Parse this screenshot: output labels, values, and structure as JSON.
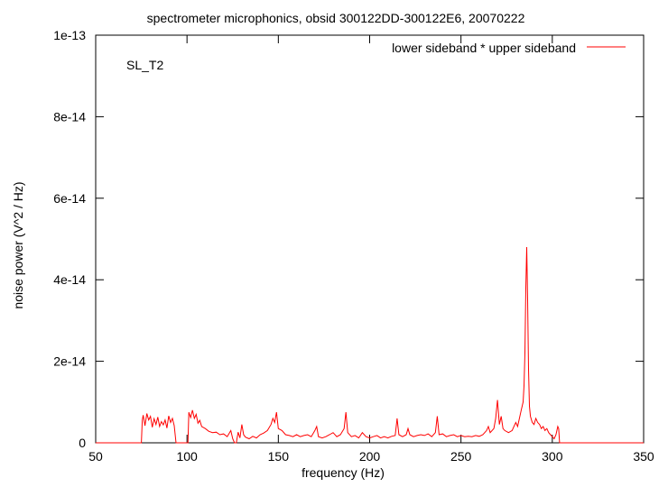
{
  "chart_data": {
    "type": "line",
    "title": "spectrometer microphonics, obsid 300122DD-300122E6, 20070222",
    "xlabel": "frequency (Hz)",
    "ylabel": "noise power (V^2 / Hz)",
    "annotation": "SL_T2",
    "xlim": [
      50,
      350
    ],
    "ylim": [
      0,
      1e-13
    ],
    "x_ticks": [
      50,
      100,
      150,
      200,
      250,
      300,
      350
    ],
    "x_tick_labels": [
      "50",
      "100",
      "150",
      "200",
      "250",
      "300",
      "350"
    ],
    "y_ticks": [
      0,
      2e-14,
      4e-14,
      6e-14,
      8e-14,
      1e-13
    ],
    "y_tick_labels": [
      "0",
      "2e-14",
      "4e-14",
      "6e-14",
      "8e-14",
      "1e-13"
    ],
    "grid": false,
    "legend_position": "top-right",
    "series_color": "#ff0000",
    "series": [
      {
        "name": "lower sideband * upper sideband",
        "x": [
          50,
          75,
          75.5,
          76,
          77,
          78,
          79,
          80,
          81,
          82,
          83,
          84,
          85,
          86,
          87,
          88,
          89,
          90,
          91,
          92,
          93,
          94,
          95,
          96,
          97,
          98,
          99,
          100,
          100.5,
          101,
          102,
          103,
          104,
          105,
          106,
          107,
          108,
          110,
          112,
          114,
          116,
          118,
          120,
          122,
          124,
          125,
          126,
          127,
          128,
          129,
          130,
          131,
          132,
          134,
          136,
          138,
          140,
          142,
          144,
          146,
          147,
          148,
          149,
          150,
          152,
          154,
          156,
          158,
          160,
          162,
          164,
          166,
          168,
          170,
          171,
          172,
          174,
          176,
          178,
          180,
          182,
          184,
          186,
          187,
          188,
          190,
          192,
          194,
          196,
          198,
          200,
          202,
          204,
          206,
          208,
          210,
          212,
          214,
          215,
          216,
          218,
          220,
          221,
          222,
          224,
          226,
          228,
          230,
          232,
          234,
          236,
          237,
          238,
          240,
          242,
          244,
          246,
          248,
          250,
          252,
          254,
          256,
          258,
          260,
          262,
          264,
          265,
          266,
          268,
          269,
          270,
          271,
          272,
          273,
          274,
          276,
          278,
          279,
          280,
          281,
          282,
          283,
          284,
          284.5,
          285,
          285.5,
          286,
          286.5,
          287,
          287.5,
          288,
          289,
          290,
          291,
          292,
          293,
          294,
          295,
          296,
          297,
          298,
          299,
          300,
          301,
          302,
          303,
          303.5,
          304,
          350
        ],
        "y": [
          0,
          0,
          5.5e-15,
          6.8e-15,
          4.2e-15,
          7.2e-15,
          5.6e-15,
          6.5e-15,
          3.8e-15,
          5.9e-15,
          4.5e-15,
          6.3e-15,
          4e-15,
          5.2e-15,
          4.4e-15,
          5.6e-15,
          3.6e-15,
          6.6e-15,
          5e-15,
          6e-15,
          4.2e-15,
          0,
          0,
          0,
          0,
          0,
          0,
          0,
          0,
          7.5e-15,
          6.2e-15,
          8e-15,
          6e-15,
          7e-15,
          4.8e-15,
          5.5e-15,
          4e-15,
          3.5e-15,
          2.8e-15,
          2.5e-15,
          2.6e-15,
          2e-15,
          2.2e-15,
          1.5e-15,
          3e-15,
          1e-15,
          0,
          0,
          2.6e-15,
          1.2e-15,
          4.5e-15,
          2e-15,
          1.4e-15,
          1e-15,
          1.6e-15,
          1.2e-15,
          2e-15,
          2.4e-15,
          3e-15,
          4.5e-15,
          6e-15,
          5e-15,
          7.5e-15,
          3.5e-15,
          3e-15,
          2e-15,
          1.8e-15,
          1.5e-15,
          2e-15,
          1.5e-15,
          1.8e-15,
          2e-15,
          1.5e-15,
          3e-15,
          4e-15,
          1.5e-15,
          1.2e-15,
          1.5e-15,
          2e-15,
          2.5e-15,
          1.5e-15,
          2e-15,
          3.5e-15,
          7.5e-15,
          2.5e-15,
          1.5e-15,
          1.8e-15,
          1.2e-15,
          2.5e-15,
          1.5e-15,
          1.2e-15,
          1.5e-15,
          1.8e-15,
          1.2e-15,
          1.5e-15,
          1.2e-15,
          1.6e-15,
          1.8e-15,
          6e-15,
          2e-15,
          1.5e-15,
          2e-15,
          3.5e-15,
          2e-15,
          1.5e-15,
          1.8e-15,
          2e-15,
          1.8e-15,
          2.2e-15,
          1.5e-15,
          2.5e-15,
          6.5e-15,
          2e-15,
          2.2e-15,
          1.5e-15,
          1.8e-15,
          2e-15,
          1.5e-15,
          1.8e-15,
          1.5e-15,
          1.6e-15,
          1.5e-15,
          1.8e-15,
          1.6e-15,
          2e-15,
          3e-15,
          4e-15,
          2.5e-15,
          3.5e-15,
          6e-15,
          1.05e-14,
          4.5e-15,
          6.5e-15,
          3.5e-15,
          3e-15,
          2.5e-15,
          3e-15,
          4e-15,
          5e-15,
          4e-15,
          6e-15,
          8e-15,
          1e-14,
          1.4e-14,
          2.2e-14,
          3.8e-14,
          4.8e-14,
          3.5e-14,
          1.8e-14,
          9e-15,
          6.5e-15,
          5e-15,
          4.5e-15,
          6e-15,
          5e-15,
          4.5e-15,
          3.5e-15,
          4e-15,
          3e-15,
          3.5e-15,
          2.5e-15,
          2e-15,
          1.5e-15,
          1e-15,
          2e-15,
          4e-15,
          3.5e-15,
          0,
          0
        ]
      }
    ]
  }
}
